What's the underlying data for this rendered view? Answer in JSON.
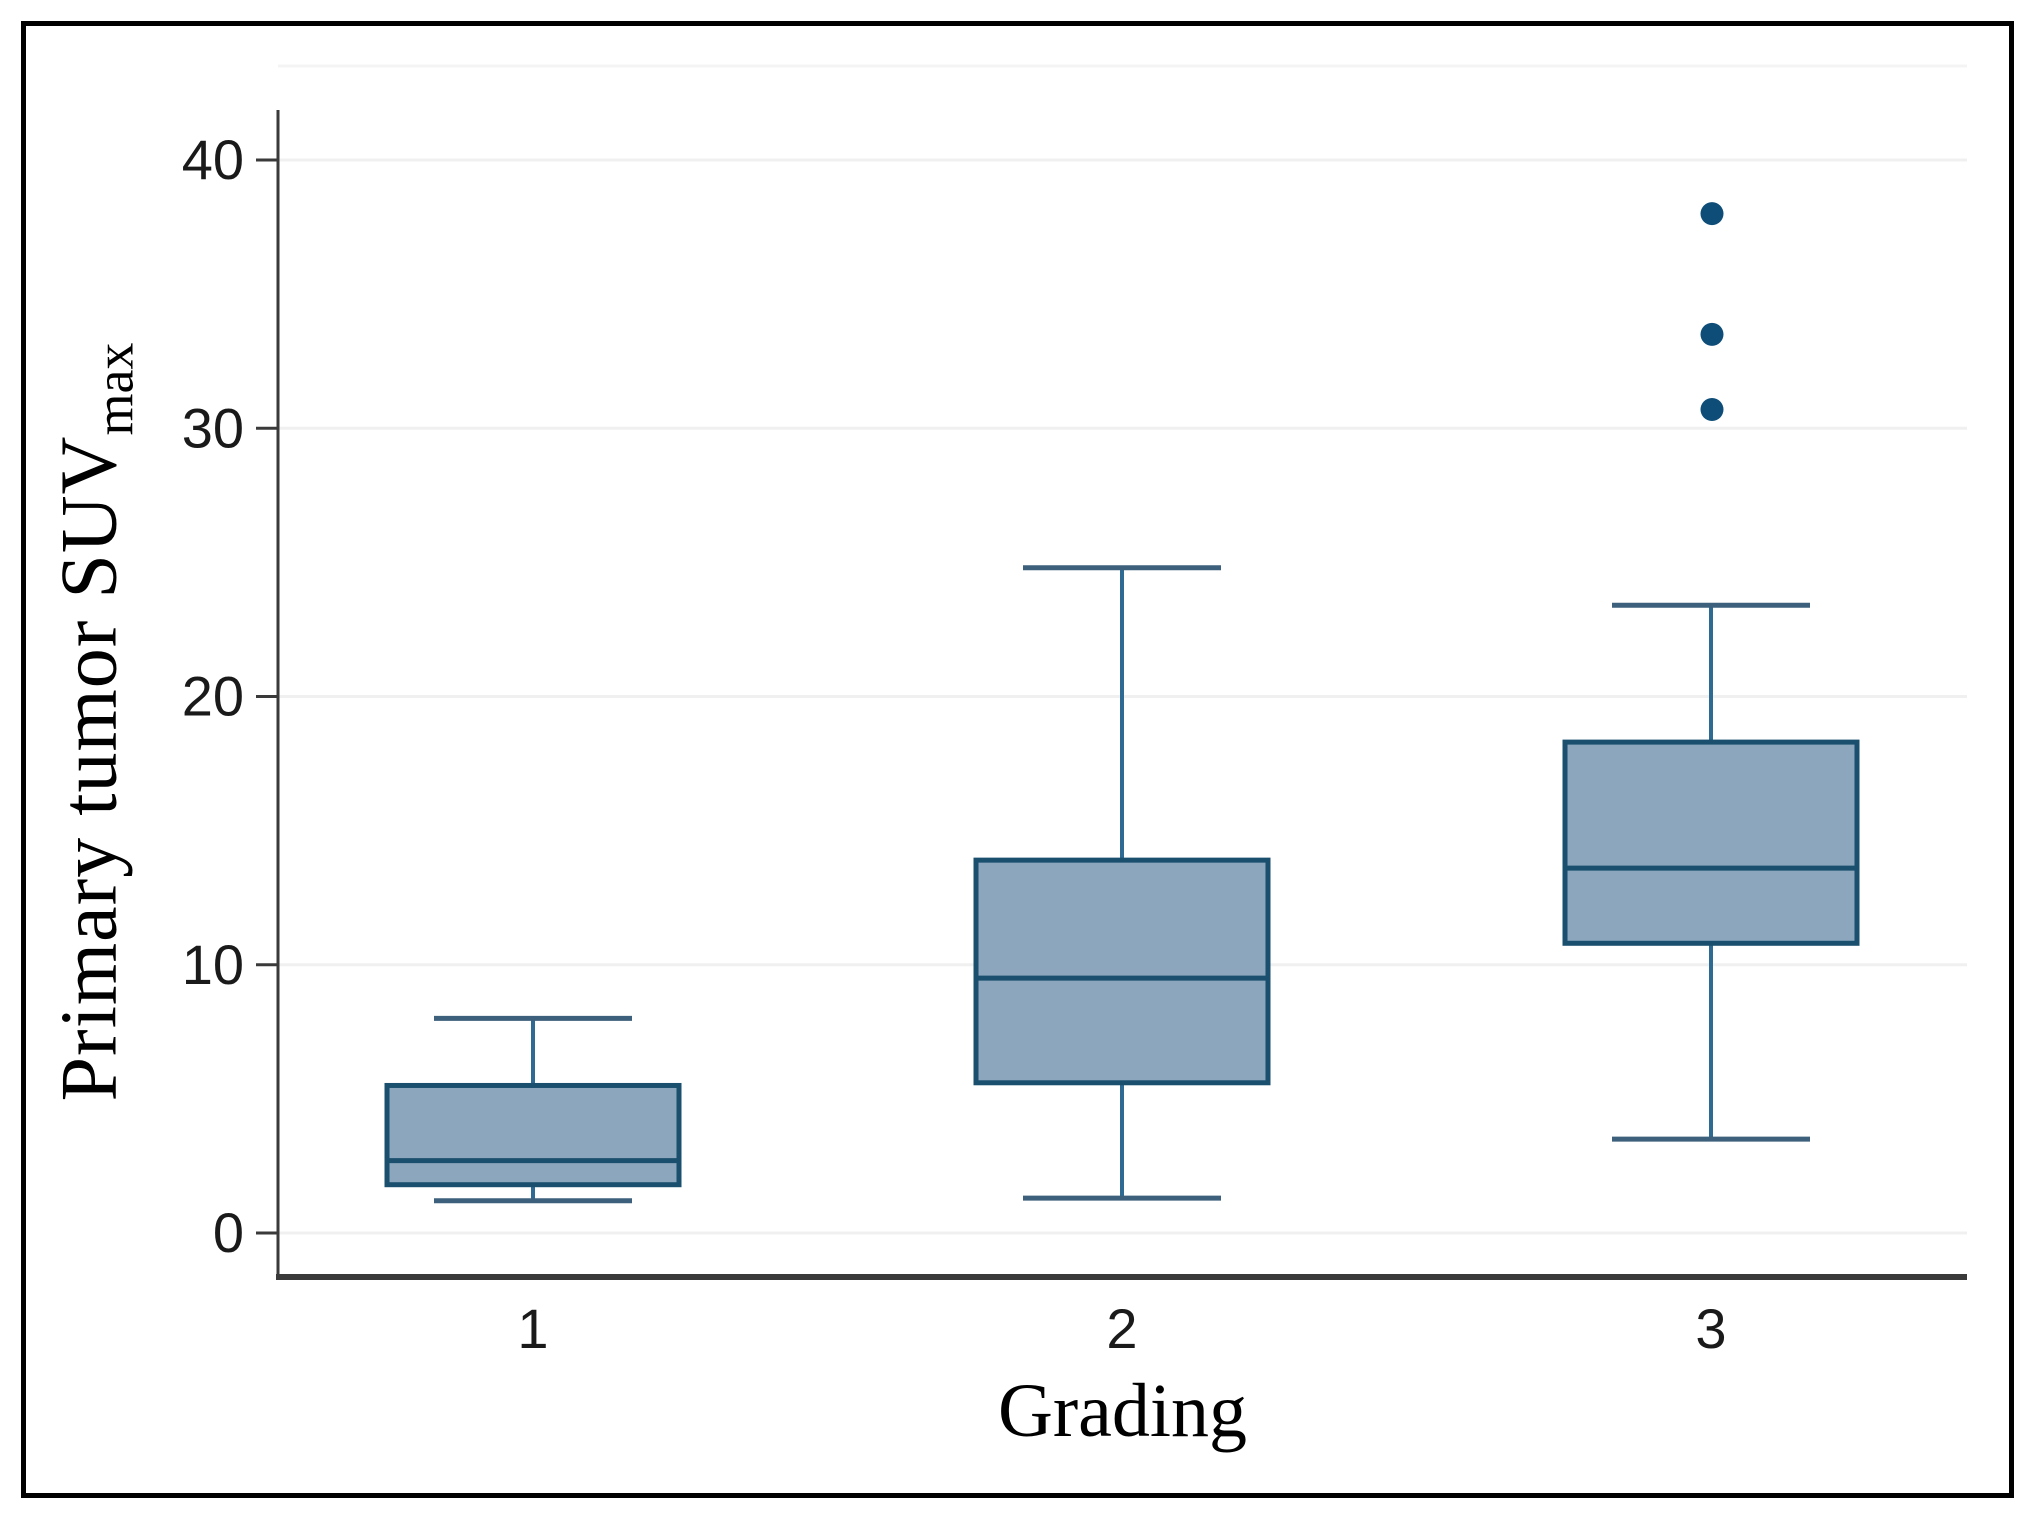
{
  "chart_data": {
    "type": "boxplot",
    "title": "",
    "xlabel": "Grading",
    "ylabel_main": "Primary tumor SUV",
    "ylabel_sub": "max",
    "ylabel_full": "Primary tumor SUVmax",
    "ylim": [
      0,
      43
    ],
    "yticks": [
      0,
      10,
      20,
      30,
      40
    ],
    "grid": "horizontal",
    "legend": "none",
    "categories": [
      "1",
      "2",
      "3"
    ],
    "series": [
      {
        "category": "1",
        "whisker_low": 1.2,
        "q1": 1.8,
        "median": 2.7,
        "q3": 5.5,
        "whisker_high": 8.0,
        "outliers": []
      },
      {
        "category": "2",
        "whisker_low": 1.3,
        "q1": 5.6,
        "median": 9.5,
        "q3": 13.9,
        "whisker_high": 24.8,
        "outliers": []
      },
      {
        "category": "3",
        "whisker_low": 3.5,
        "q1": 10.8,
        "median": 13.6,
        "q3": 18.3,
        "whisker_high": 23.4,
        "outliers": [
          30.7,
          33.5,
          38.0
        ]
      }
    ],
    "colors": {
      "box_fill": "#8ba6bd",
      "box_border": "#1a4f6e",
      "median": "#1a4f6e",
      "whisker": "#2f6a93",
      "whisker_cap": "#3d607c",
      "outlier": "#0e4d78",
      "gridline": "#f0f0f0",
      "panel_top_line": "#f4f4f4",
      "axis": "#3a3a3a",
      "text": "#1a1a1a",
      "frame": "#000000"
    }
  }
}
